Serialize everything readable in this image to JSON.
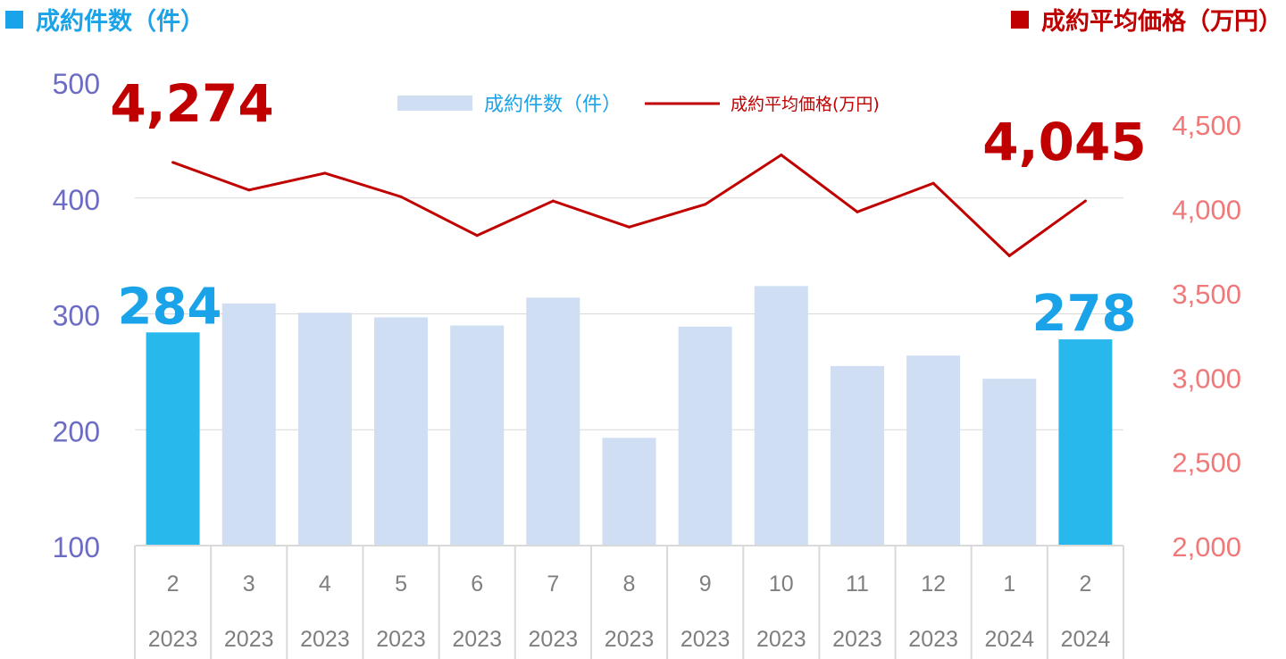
{
  "headers": {
    "left": {
      "label": "成約件数（件）",
      "color": "#1aa3e8"
    },
    "right": {
      "label": "成約平均価格（万円）",
      "color": "#c00000"
    }
  },
  "legend": {
    "bar_label": "成約件数（件）",
    "line_label": "成約平均価格(万円)",
    "bar_label_color": "#1aa3e8",
    "line_label_color": "#c00000"
  },
  "colors": {
    "bar_default": "#cfdef2",
    "bar_highlight": "#29b8ec",
    "line": "#c00000",
    "left_axis_text": "#6c6cc4",
    "right_axis_text": "#f07878",
    "category_text": "#7f7f7f",
    "grid": "#d9d9d9",
    "highlight_value_bar": "#1aa3e8",
    "highlight_value_line": "#c00000"
  },
  "chart_data": {
    "type": "bar",
    "categories": [
      {
        "month": "2",
        "year": "2023"
      },
      {
        "month": "3",
        "year": "2023"
      },
      {
        "month": "4",
        "year": "2023"
      },
      {
        "month": "5",
        "year": "2023"
      },
      {
        "month": "6",
        "year": "2023"
      },
      {
        "month": "7",
        "year": "2023"
      },
      {
        "month": "8",
        "year": "2023"
      },
      {
        "month": "9",
        "year": "2023"
      },
      {
        "month": "10",
        "year": "2023"
      },
      {
        "month": "11",
        "year": "2023"
      },
      {
        "month": "12",
        "year": "2023"
      },
      {
        "month": "1",
        "year": "2024"
      },
      {
        "month": "2",
        "year": "2024"
      }
    ],
    "series": [
      {
        "name": "成約件数（件）",
        "type": "bar",
        "axis": "left",
        "values": [
          284,
          309,
          301,
          297,
          290,
          314,
          193,
          289,
          324,
          255,
          264,
          244,
          278
        ],
        "highlight": [
          0,
          12
        ]
      },
      {
        "name": "成約平均価格(万円)",
        "type": "line",
        "axis": "right",
        "values": [
          4274,
          4110,
          4210,
          4070,
          3840,
          4045,
          3890,
          4025,
          4318,
          3980,
          4150,
          3720,
          4045
        ]
      }
    ],
    "left_axis": {
      "ylim": [
        100,
        500
      ],
      "ticks": [
        "100",
        "200",
        "300",
        "400",
        "500"
      ]
    },
    "right_axis": {
      "ylim": [
        2000,
        4750
      ],
      "ticks": [
        "2,000",
        "2,500",
        "3,000",
        "3,500",
        "4,000",
        "4,500"
      ]
    },
    "annotations": [
      {
        "series": 0,
        "index": 0,
        "text": "284"
      },
      {
        "series": 0,
        "index": 12,
        "text": "278"
      },
      {
        "series": 1,
        "index": 0,
        "text": "4,274"
      },
      {
        "series": 1,
        "index": 12,
        "text": "4,045"
      }
    ]
  }
}
